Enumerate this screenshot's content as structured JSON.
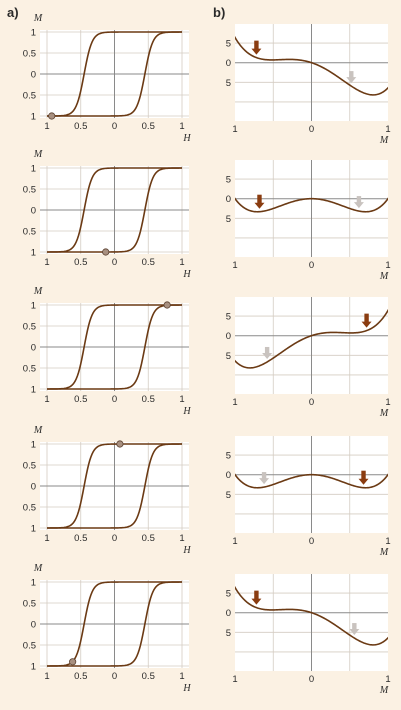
{
  "panel_labels": {
    "a": "a)",
    "b": "b)"
  },
  "hysteresis": {
    "y_axis_label": "M",
    "x_axis_label": "H",
    "y_ticks": [
      "1",
      "0.5",
      "0",
      "0.5",
      "1"
    ],
    "x_ticks": [
      "1",
      "0.5",
      "0",
      "0.5",
      "1"
    ],
    "rows": [
      {
        "marker": {
          "h": -0.93,
          "m": -1.0
        }
      },
      {
        "marker": {
          "h": -0.13,
          "m": -1.0
        }
      },
      {
        "marker": {
          "h": 0.78,
          "m": 1.0
        }
      },
      {
        "marker": {
          "h": 0.08,
          "m": 1.0
        }
      },
      {
        "marker": {
          "h": -0.62,
          "m": -0.9
        }
      }
    ]
  },
  "energy": {
    "x_axis_label": "M",
    "y_ticks": [
      "5",
      "0",
      "5"
    ],
    "x_ticks": [
      "1",
      "0",
      "1"
    ],
    "rows": [
      {
        "h": 0.7,
        "arrows": [
          {
            "m": -0.72,
            "style": "dark"
          },
          {
            "m": 0.52,
            "style": "light"
          }
        ]
      },
      {
        "h": 0.0,
        "arrows": [
          {
            "m": -0.68,
            "style": "dark"
          },
          {
            "m": 0.62,
            "style": "light"
          }
        ]
      },
      {
        "h": -0.7,
        "arrows": [
          {
            "m": -0.58,
            "style": "light"
          },
          {
            "m": 0.72,
            "style": "dark"
          }
        ]
      },
      {
        "h": 0.0,
        "arrows": [
          {
            "m": -0.62,
            "style": "light"
          },
          {
            "m": 0.68,
            "style": "dark"
          }
        ]
      },
      {
        "h": 0.7,
        "arrows": [
          {
            "m": -0.72,
            "style": "dark"
          },
          {
            "m": 0.56,
            "style": "light"
          }
        ]
      }
    ]
  },
  "colors": {
    "background": "#fbf1e3",
    "plot_background": "#ffffff",
    "grid": "#d4ccc2",
    "curve": "#6b3a14",
    "marker": "#a89080",
    "arrow_dark": "#8a3c10",
    "arrow_light": "#c9c3bf"
  }
}
